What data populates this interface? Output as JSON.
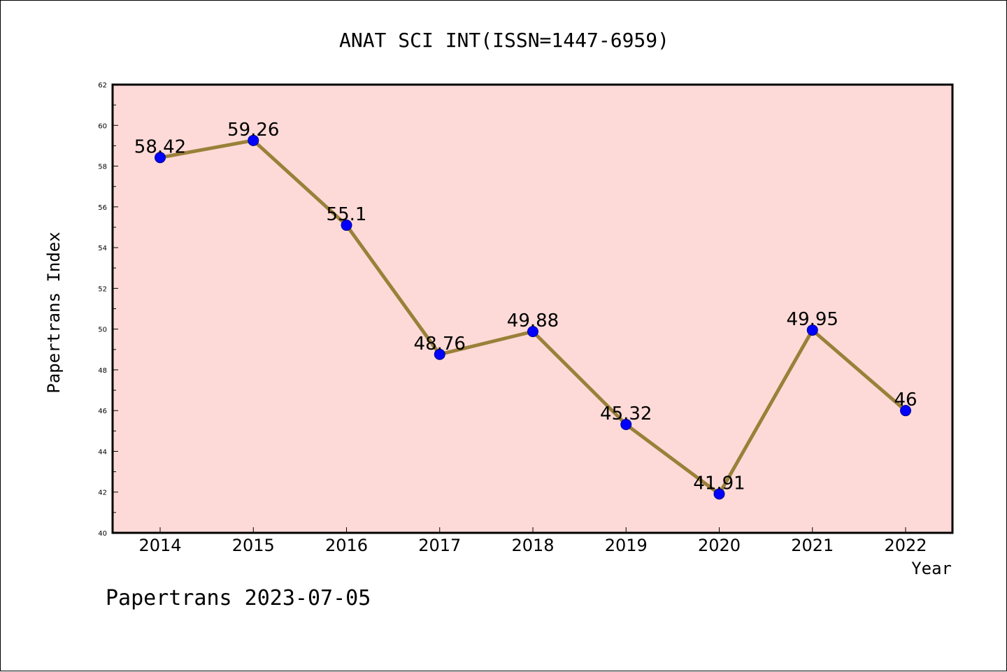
{
  "chart_data": {
    "type": "line",
    "title": "ANAT SCI INT(ISSN=1447-6959)",
    "xlabel": "Year",
    "ylabel": "Papertrans Index",
    "categories": [
      "2014",
      "2015",
      "2016",
      "2017",
      "2018",
      "2019",
      "2020",
      "2021",
      "2022"
    ],
    "values": [
      58.42,
      59.26,
      55.1,
      48.76,
      49.88,
      45.32,
      41.91,
      49.95,
      46
    ],
    "data_labels": [
      "58.42",
      "59.26",
      "55.1",
      "48.76",
      "49.88",
      "45.32",
      "41.91",
      "49.95",
      "46"
    ],
    "ylim": [
      40,
      62
    ],
    "yticks": [
      40,
      42,
      44,
      46,
      48,
      50,
      52,
      54,
      56,
      58,
      60,
      62
    ],
    "grid": false,
    "colors": {
      "plot_background": "#fddad7",
      "line": "#9a8039",
      "marker": "#0000ff"
    }
  },
  "footer": "Papertrans 2023-07-05"
}
